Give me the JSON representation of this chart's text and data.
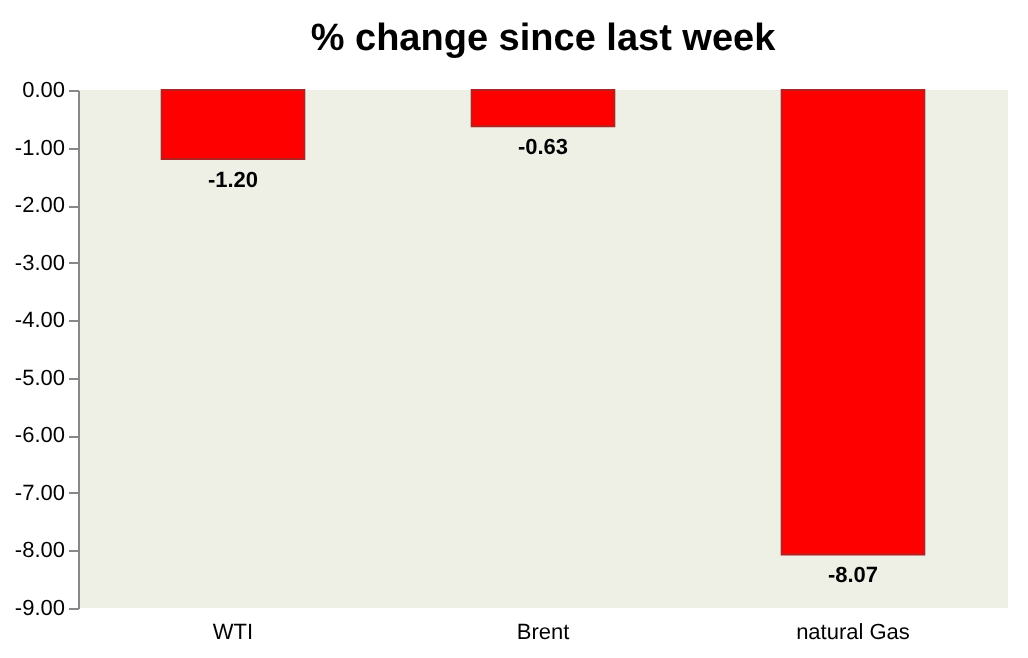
{
  "chart_data": {
    "type": "bar",
    "title": "% change since last week",
    "categories": [
      "WTI",
      "Brent",
      "natural Gas"
    ],
    "values": [
      -1.2,
      -0.63,
      -8.07
    ],
    "value_labels": [
      "-1.20",
      "-0.63",
      "-8.07"
    ],
    "color": "#ff0000",
    "ylim": [
      -9,
      0
    ],
    "yticks": [
      {
        "value": 0,
        "label": "0.00"
      },
      {
        "value": -1,
        "label": "-1.00"
      },
      {
        "value": -2,
        "label": "-2.00"
      },
      {
        "value": -3,
        "label": "-3.00"
      },
      {
        "value": -4,
        "label": "-4.00"
      },
      {
        "value": -5,
        "label": "-5.00"
      },
      {
        "value": -6,
        "label": "-6.00"
      },
      {
        "value": -7,
        "label": "-7.00"
      },
      {
        "value": -8,
        "label": "-8.00"
      },
      {
        "value": -9,
        "label": "-9.00"
      }
    ],
    "grid": false
  }
}
